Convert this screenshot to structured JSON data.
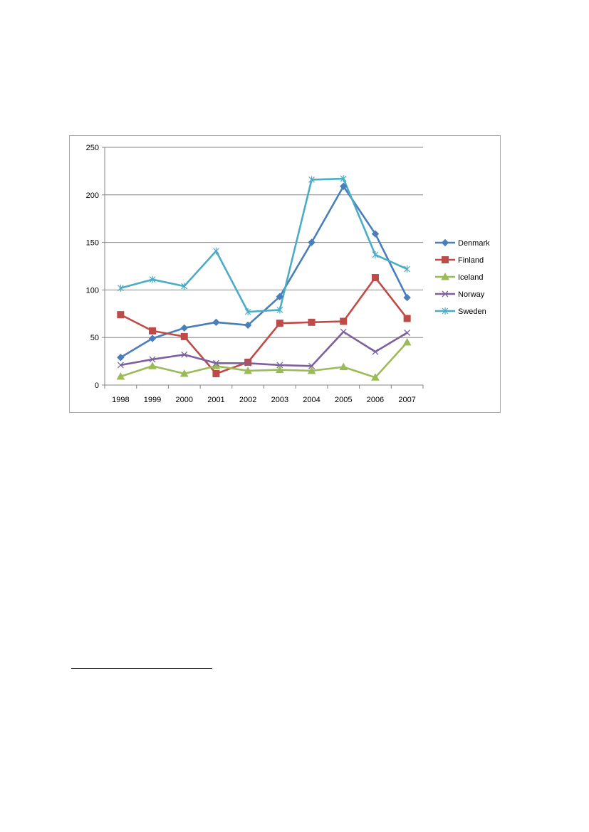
{
  "chart_data": {
    "type": "line",
    "title": "",
    "xlabel": "",
    "ylabel": "",
    "categories": [
      "1998",
      "1999",
      "2000",
      "2001",
      "2002",
      "2003",
      "2004",
      "2005",
      "2006",
      "2007"
    ],
    "ylim": [
      0,
      250
    ],
    "yticks": [
      0,
      50,
      100,
      150,
      200,
      250
    ],
    "grid": "horizontal",
    "legend": "right",
    "series": [
      {
        "name": "Denmark",
        "color": "#4a7ebb",
        "marker": "diamond",
        "values": [
          29,
          49,
          60,
          66,
          63,
          93,
          150,
          209,
          159,
          92
        ]
      },
      {
        "name": "Finland",
        "color": "#be4b48",
        "marker": "square",
        "values": [
          74,
          57,
          51,
          12,
          24,
          65,
          66,
          67,
          113,
          70
        ]
      },
      {
        "name": "Iceland",
        "color": "#9bbb59",
        "marker": "triangle",
        "values": [
          9,
          20,
          12,
          20,
          15,
          16,
          15,
          19,
          8,
          45
        ]
      },
      {
        "name": "Norway",
        "color": "#7d60a0",
        "marker": "x",
        "values": [
          21,
          27,
          32,
          23,
          23,
          21,
          20,
          56,
          35,
          55
        ]
      },
      {
        "name": "Sweden",
        "color": "#4bacc6",
        "marker": "star",
        "values": [
          102,
          111,
          104,
          141,
          77,
          79,
          216,
          217,
          137,
          122
        ]
      }
    ]
  }
}
